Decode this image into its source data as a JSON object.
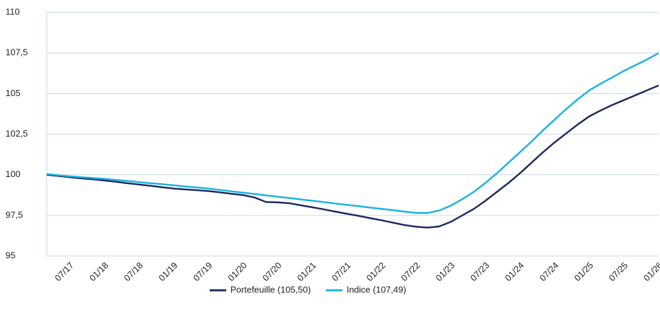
{
  "chart_data": {
    "type": "line",
    "categories": [
      null,
      null,
      "07/17",
      null,
      null,
      "01/18",
      null,
      null,
      "07/18",
      null,
      null,
      "01/19",
      null,
      null,
      "07/19",
      null,
      null,
      "01/20",
      null,
      null,
      "07/20",
      null,
      null,
      "01/21",
      null,
      null,
      "07/21",
      null,
      null,
      "01/22",
      null,
      null,
      "07/22",
      null,
      null,
      "01/23",
      null,
      null,
      "07/23",
      null,
      null,
      "01/24",
      null,
      null,
      "07/24",
      null,
      null,
      "01/25",
      null,
      null,
      "07/25",
      null,
      null,
      "01/26"
    ],
    "series": [
      {
        "name": "Portefeuille (105,50)",
        "color": "#1b2a5c",
        "values": [
          100.0,
          99.93,
          99.85,
          99.78,
          99.72,
          99.65,
          99.57,
          99.48,
          99.4,
          99.32,
          99.23,
          99.15,
          99.1,
          99.05,
          99.0,
          98.92,
          98.83,
          98.75,
          98.6,
          98.32,
          98.3,
          98.25,
          98.12,
          98.0,
          97.87,
          97.73,
          97.6,
          97.47,
          97.33,
          97.2,
          97.05,
          96.9,
          96.8,
          96.75,
          96.82,
          97.1,
          97.5,
          97.9,
          98.4,
          98.95,
          99.5,
          100.1,
          100.75,
          101.4,
          102.0,
          102.55,
          103.1,
          103.6,
          103.97,
          104.3,
          104.6,
          104.9,
          105.2,
          105.5
        ]
      },
      {
        "name": "Indice (107,49)",
        "color": "#1ab1e3",
        "values": [
          100.05,
          99.97,
          99.9,
          99.85,
          99.8,
          99.75,
          99.68,
          99.62,
          99.55,
          99.48,
          99.42,
          99.35,
          99.28,
          99.22,
          99.15,
          99.07,
          98.98,
          98.9,
          98.82,
          98.73,
          98.65,
          98.57,
          98.48,
          98.4,
          98.32,
          98.23,
          98.15,
          98.07,
          97.98,
          97.9,
          97.82,
          97.73,
          97.65,
          97.65,
          97.8,
          98.1,
          98.5,
          98.95,
          99.5,
          100.1,
          100.75,
          101.4,
          102.05,
          102.75,
          103.4,
          104.05,
          104.65,
          105.2,
          105.62,
          106.0,
          106.4,
          106.75,
          107.1,
          107.49
        ]
      }
    ],
    "ylim": [
      95,
      110
    ],
    "yticks": [
      95,
      {
        "value": 97.5,
        "label": "97,5"
      },
      100,
      {
        "value": 102.5,
        "label": "102,5"
      },
      105,
      {
        "value": 107.5,
        "label": "107,5"
      },
      110
    ],
    "grid": true
  }
}
